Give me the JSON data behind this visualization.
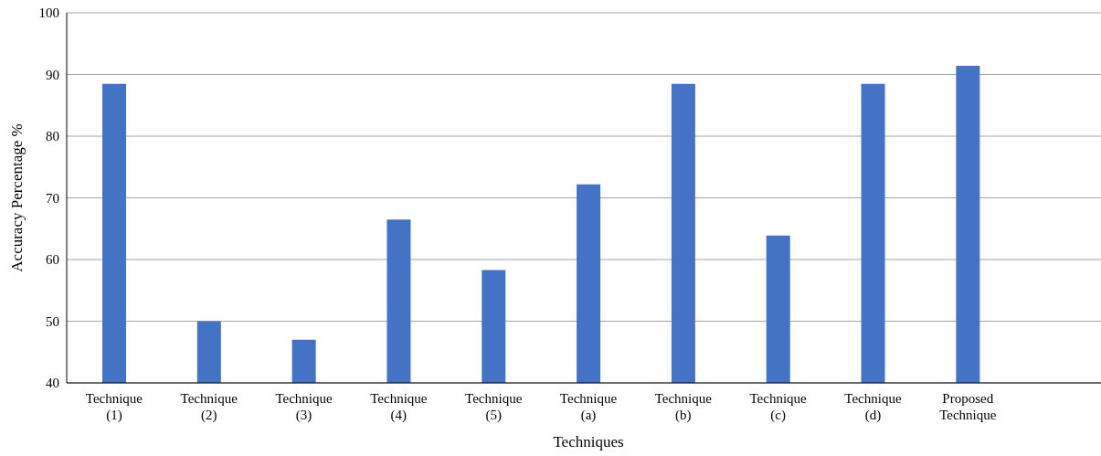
{
  "chart_data": {
    "type": "bar",
    "xlabel": "Techniques",
    "ylabel": "Accuracy Percentage %",
    "categories": [
      "Technique (1)",
      "Technique (2)",
      "Technique (3)",
      "Technique (4)",
      "Technique (5)",
      "Technique (a)",
      "Technique (b)",
      "Technique (c)",
      "Technique (d)",
      "Proposed Technique",
      null
    ],
    "values": [
      88.5,
      50,
      47,
      66.5,
      58.3,
      72.2,
      88.5,
      63.9,
      88.5,
      91.4,
      null
    ],
    "color": "#4472c4",
    "ylim": [
      40,
      100
    ],
    "yticks": [
      40,
      50,
      60,
      70,
      80,
      90,
      100
    ],
    "grid": "y",
    "legend": false
  }
}
